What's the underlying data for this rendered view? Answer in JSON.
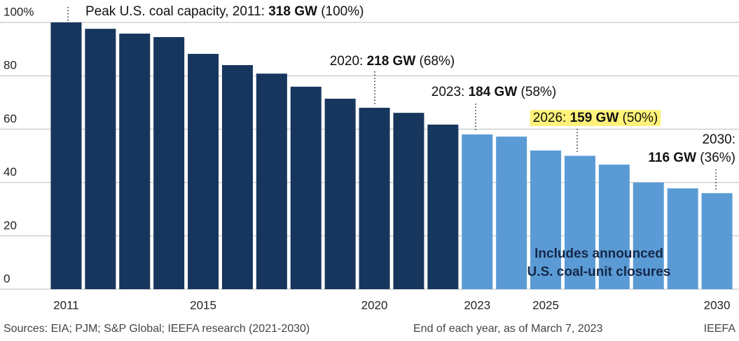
{
  "chart_data": {
    "type": "bar",
    "categories": [
      "2011",
      null,
      null,
      null,
      "2015",
      null,
      null,
      null,
      null,
      "2020",
      null,
      null,
      "2023",
      null,
      "2025",
      null,
      null,
      null,
      null,
      "2030"
    ],
    "values": [
      100,
      97.6,
      95.8,
      94.5,
      88.2,
      84,
      80.8,
      75.9,
      71.4,
      68,
      66.1,
      61.7,
      58,
      57.2,
      52,
      50,
      46.7,
      40,
      37.8,
      36
    ],
    "colors": [
      "#17365d",
      "#17365d",
      "#17365d",
      "#17365d",
      "#17365d",
      "#17365d",
      "#17365d",
      "#17365d",
      "#17365d",
      "#17365d",
      "#17365d",
      "#17365d",
      "#5b9bd5",
      "#5b9bd5",
      "#5b9bd5",
      "#5b9bd5",
      "#5b9bd5",
      "#5b9bd5",
      "#5b9bd5",
      "#5b9bd5"
    ],
    "ylim": [
      0,
      100
    ],
    "yticks": [
      0,
      20,
      40,
      60,
      80,
      {
        "value": 100,
        "label": "100%"
      }
    ],
    "grid": true,
    "annotations": [
      {
        "lines": [
          [
            {
              "text": "Peak U.S. coal capacity, 2011: ",
              "bold": false
            },
            {
              "text": "318 GW",
              "bold": true
            },
            {
              "text": " (100%)",
              "bold": false
            }
          ]
        ]
      },
      {
        "lines": [
          [
            {
              "text": "2020: ",
              "bold": false
            },
            {
              "text": "218 GW",
              "bold": true
            },
            {
              "text": " (68%)",
              "bold": false
            }
          ]
        ]
      },
      {
        "lines": [
          [
            {
              "text": "2023: ",
              "bold": false
            },
            {
              "text": "184 GW",
              "bold": true
            },
            {
              "text": " (58%)",
              "bold": false
            }
          ]
        ]
      },
      {
        "lines": [
          [
            {
              "text": "2026: ",
              "bold": false
            },
            {
              "text": "159 GW",
              "bold": true
            },
            {
              "text": " (50%)",
              "bold": false
            }
          ]
        ],
        "highlight": "#fff27a"
      },
      {
        "lines": [
          [
            {
              "text": "2030:",
              "bold": false
            }
          ],
          [
            {
              "text": "116 GW",
              "bold": true
            },
            {
              "text": " (36%)",
              "bold": false
            }
          ]
        ]
      }
    ],
    "box_text": [
      "Includes announced",
      "U.S. coal-unit closures"
    ],
    "footer": [
      "Sources: EIA; PJM; S&P Global; IEEFA research (2021-2030)",
      "End of each year, as of March 7, 2023",
      "IEEFA"
    ]
  }
}
